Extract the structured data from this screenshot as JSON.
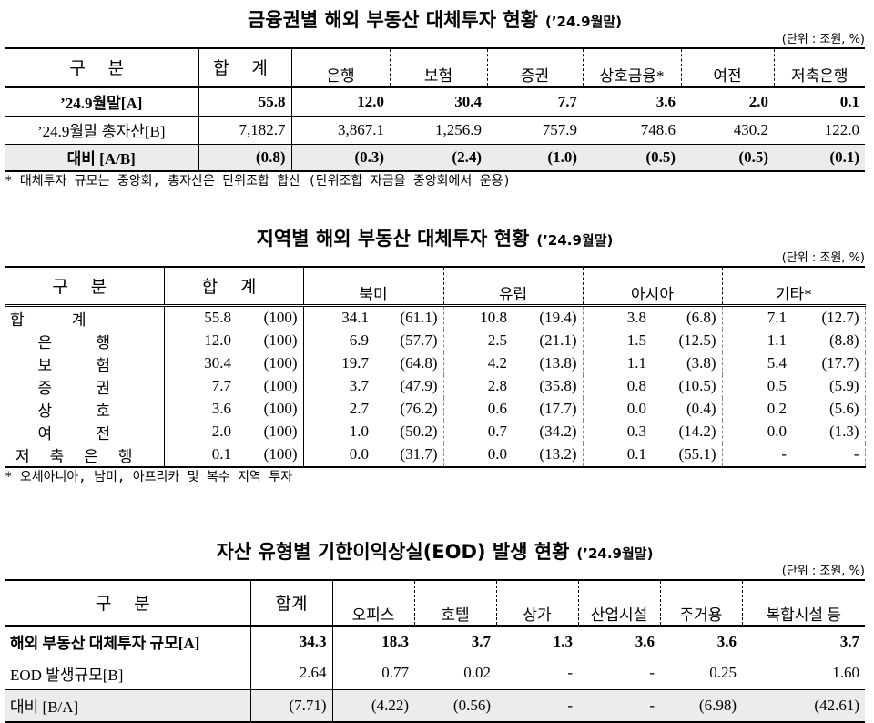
{
  "tables": [
    {
      "title": "금융권별 해외 부동산 대체투자 현황",
      "date": "(’24.9월말)",
      "unit": "(단위 : 조원, %)",
      "header": [
        "구 분",
        "합 계",
        "은행",
        "보험",
        "증권",
        "상호금융*",
        "여전",
        "저축은행"
      ],
      "rows": [
        [
          "’24.9월말[A]",
          "55.8",
          "12.0",
          "30.4",
          "7.7",
          "3.6",
          "2.0",
          "0.1"
        ],
        [
          "’24.9월말 총자산[B]",
          "7,182.7",
          "3,867.1",
          "1,256.9",
          "757.9",
          "748.6",
          "430.2",
          "122.0"
        ],
        [
          "대비 [A/B]",
          "(0.8)",
          "(0.3)",
          "(2.4)",
          "(1.0)",
          "(0.5)",
          "(0.5)",
          "(0.1)"
        ]
      ],
      "note": "* 대체투자 규모는 중앙회, 총자산은 단위조합 합산 (단위조합 자금을 중앙회에서 운용)"
    },
    {
      "title": "지역별 해외 부동산 대체투자 현황",
      "date": "(’24.9월말)",
      "unit": "(단위 : 조원, %)",
      "header": [
        "구 분",
        "합 계",
        "북미",
        "유럽",
        "아시아",
        "기타*"
      ],
      "rows": [
        [
          "합 계",
          "55.8",
          "(100)",
          "34.1",
          "(61.1)",
          "10.8",
          "(19.4)",
          "3.8",
          "(6.8)",
          "7.1",
          "(12.7)"
        ],
        [
          "은 행",
          "12.0",
          "(100)",
          "6.9",
          "(57.7)",
          "2.5",
          "(21.1)",
          "1.5",
          "(12.5)",
          "1.1",
          "(8.8)"
        ],
        [
          "보 험",
          "30.4",
          "(100)",
          "19.7",
          "(64.8)",
          "4.2",
          "(13.8)",
          "1.1",
          "(3.8)",
          "5.4",
          "(17.7)"
        ],
        [
          "증 권",
          "7.7",
          "(100)",
          "3.7",
          "(47.9)",
          "2.8",
          "(35.8)",
          "0.8",
          "(10.5)",
          "0.5",
          "(5.9)"
        ],
        [
          "상 호",
          "3.6",
          "(100)",
          "2.7",
          "(76.2)",
          "0.6",
          "(17.7)",
          "0.0",
          "(0.4)",
          "0.2",
          "(5.6)"
        ],
        [
          "여 전",
          "2.0",
          "(100)",
          "1.0",
          "(50.2)",
          "0.7",
          "(34.2)",
          "0.3",
          "(14.2)",
          "0.0",
          "(1.3)"
        ],
        [
          "저축은행",
          "0.1",
          "(100)",
          "0.0",
          "(31.7)",
          "0.0",
          "(13.2)",
          "0.1",
          "(55.1)",
          "-",
          "-"
        ]
      ],
      "note": "* 오세아니아, 남미, 아프리카 및 복수 지역 투자"
    },
    {
      "title": "자산 유형별 기한이익상실(EOD) 발생 현황",
      "date": "(’24.9월말)",
      "unit": "(단위 : 조원, %)",
      "header": [
        "구 분",
        "합계",
        "오피스",
        "호텔",
        "상가",
        "산업시설",
        "주거용",
        "복합시설 등"
      ],
      "rows": [
        [
          "해외 부동산 대체투자 규모[A]",
          "34.3",
          "18.3",
          "3.7",
          "1.3",
          "3.6",
          "3.6",
          "3.7"
        ],
        [
          "EOD 발생규모[B]",
          "2.64",
          "0.77",
          "0.02",
          "-",
          "-",
          "0.25",
          "1.60"
        ],
        [
          "대비 [B/A]",
          "(7.71)",
          "(4.22)",
          "(0.56)",
          "-",
          "-",
          "(6.98)",
          "(42.61)"
        ]
      ]
    }
  ]
}
